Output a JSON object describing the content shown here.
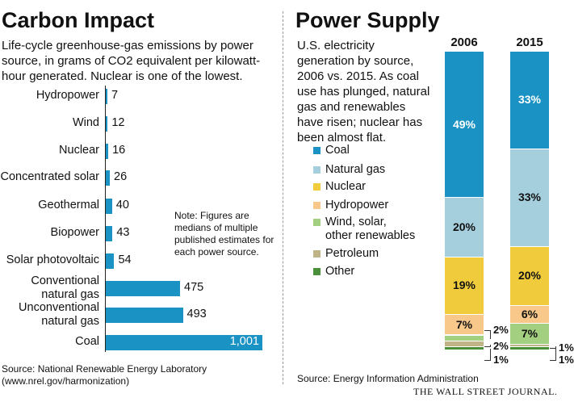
{
  "left": {
    "title": "Carbon Impact",
    "subtitle": "Life-cycle greenhouse-gas emissions by power source, in grams of CO2 equivalent per kilowatt-hour generated. Nuclear is one of the lowest.",
    "note": "Note: Figures are medians of multiple published estimates for each power source.",
    "source": "Source: National Renewable Energy Laboratory (www.nrel.gov/harmonization)"
  },
  "right": {
    "title": "Power Supply",
    "subtitle": "U.S. electricity generation by source, 2006 vs. 2015. As coal use has plunged, natural gas and renewables have risen; nuclear has been almost flat.",
    "source": "Source: Energy Information Administration"
  },
  "footer": {
    "brand": "THE WALL STREET JOURNAL."
  },
  "colors": {
    "bar": "#1a93c4",
    "coal": "#1a93c4",
    "natural_gas": "#a6cfde",
    "nuclear": "#f0cc3c",
    "hydropower": "#f7c88a",
    "renewables": "#a3cf80",
    "petroleum": "#bfb488",
    "other": "#4a8f3a"
  },
  "chart_data": [
    {
      "type": "bar",
      "orientation": "horizontal",
      "title": "Carbon Impact",
      "categories": [
        "Hydropower",
        "Wind",
        "Nuclear",
        "Concentrated solar",
        "Geothermal",
        "Biopower",
        "Solar photovoltaic",
        "Conventional natural gas",
        "Unconventional natural gas",
        "Coal"
      ],
      "values": [
        7,
        12,
        16,
        26,
        40,
        43,
        54,
        475,
        493,
        1001
      ],
      "value_labels": [
        "7",
        "12",
        "16",
        "26",
        "40",
        "43",
        "54",
        "475",
        "493",
        "1,001"
      ],
      "xlim": [
        0,
        1001
      ],
      "grid": false
    },
    {
      "type": "bar",
      "stacked": true,
      "title": "Power Supply",
      "categories": [
        "2006",
        "2015"
      ],
      "series": [
        {
          "name": "Coal",
          "values": [
            49,
            33
          ]
        },
        {
          "name": "Natural gas",
          "values": [
            20,
            33
          ]
        },
        {
          "name": "Nuclear",
          "values": [
            19,
            20
          ]
        },
        {
          "name": "Hydropower",
          "values": [
            7,
            6
          ]
        },
        {
          "name": "Wind, solar, other renewables",
          "values": [
            2,
            7
          ]
        },
        {
          "name": "Petroleum",
          "values": [
            2,
            1
          ]
        },
        {
          "name": "Other",
          "values": [
            1,
            1
          ]
        }
      ],
      "segment_labels": [
        [
          "49%",
          "20%",
          "19%",
          "7%",
          "2%",
          "2%",
          "1%"
        ],
        [
          "33%",
          "33%",
          "20%",
          "6%",
          "7%",
          "1%",
          "1%"
        ]
      ],
      "ylim": [
        0,
        100
      ],
      "legend": "left"
    }
  ]
}
